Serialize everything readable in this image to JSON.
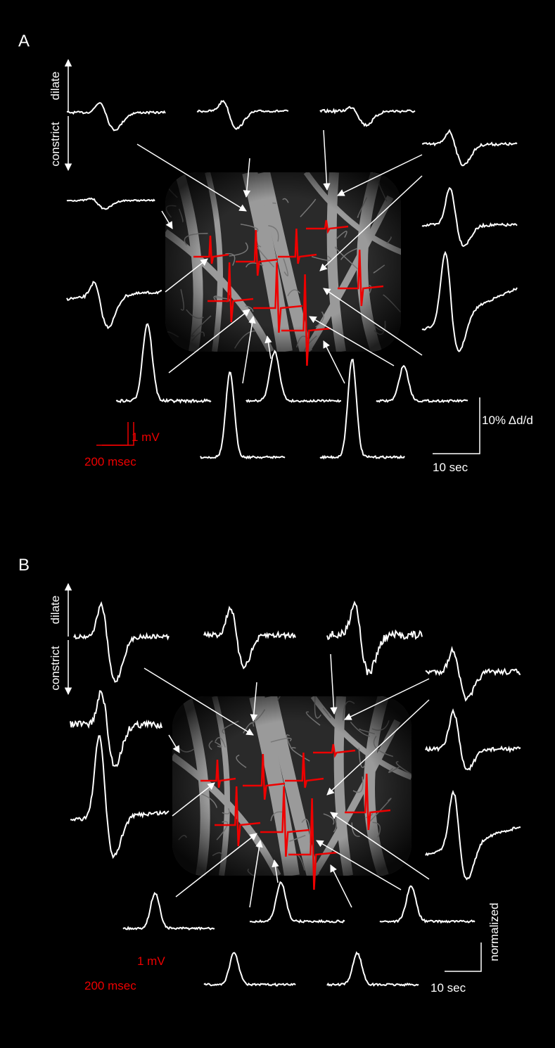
{
  "panels": [
    {
      "label": "A",
      "dilate": "dilate",
      "constrict": "constrict",
      "red_scale_y": "1 mV",
      "red_scale_x": "200 msec",
      "white_scale_y": "10% Δd/d",
      "white_scale_x": "10 sec"
    },
    {
      "label": "B",
      "dilate": "dilate",
      "constrict": "constrict",
      "red_scale_y": "1 mV",
      "red_scale_x": "200 msec",
      "white_scale_y": "normalized",
      "white_scale_x": "10 sec"
    }
  ]
}
